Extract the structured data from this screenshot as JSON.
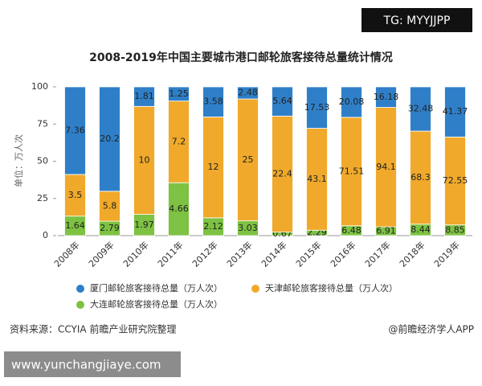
{
  "chart_data": {
    "type": "bar",
    "stacked": "percent",
    "title": "2008-2019年中国主要城市港口邮轮旅客接待总量统计情况",
    "y_label": "单位：万人次",
    "categories": [
      "2008年",
      "2009年",
      "2010年",
      "2011年",
      "2012年",
      "2013年",
      "2014年",
      "2015年",
      "2016年",
      "2017年",
      "2018年",
      "2019年"
    ],
    "series": [
      {
        "name": "大连邮轮旅客接待总量（万人次）",
        "color": "#7dc242",
        "values": [
          1.64,
          2.79,
          1.97,
          4.66,
          2.12,
          3.03,
          0.67,
          2.29,
          6.48,
          6.91,
          8.44,
          8.85
        ]
      },
      {
        "name": "天津邮轮旅客接待总量（万人次）",
        "color": "#f0a92a",
        "values": [
          3.5,
          5.8,
          10,
          7.2,
          12,
          25,
          22.4,
          43.1,
          71.51,
          94.1,
          68.3,
          72.55
        ]
      },
      {
        "name": "厦门邮轮旅客接待总量（万人次）",
        "color": "#2f7fc8",
        "values": [
          7.36,
          20.2,
          1.81,
          1.25,
          3.58,
          2.48,
          5.64,
          17.53,
          20.08,
          16.18,
          32.48,
          41.37
        ]
      }
    ],
    "ylim": [
      0,
      100
    ],
    "yticks": [
      0,
      25,
      50,
      75,
      100
    ],
    "grid": false
  },
  "source": "资料来源：CCYIA 前瞻产业研究院整理",
  "credit": "@前瞻经济学人APP",
  "watermark_top": "TG: MYYJJPP",
  "watermark_bottom": "www.yunchangjiaye.com"
}
